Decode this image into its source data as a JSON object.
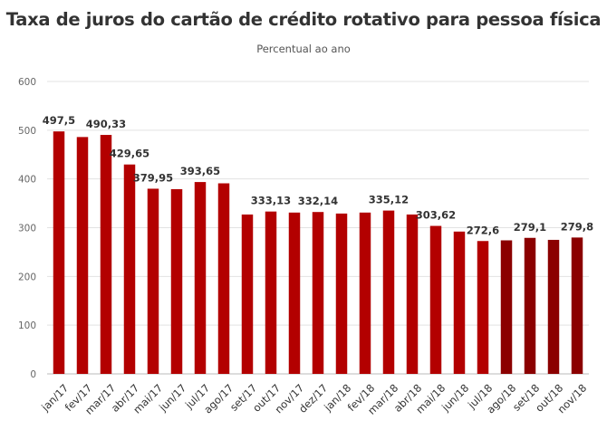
{
  "chart_data": {
    "type": "bar",
    "title": "Taxa de juros do cartão de crédito rotativo para pessoa física",
    "subtitle": "Percentual ao ano",
    "categories": [
      "jan/17",
      "fev/17",
      "mar/17",
      "abr/17",
      "mai/17",
      "jun/17",
      "jul/17",
      "ago/17",
      "set/17",
      "out/17",
      "nov/17",
      "dez/17",
      "jan/18",
      "fev/18",
      "mar/18",
      "abr/18",
      "mai/18",
      "jun/18",
      "jul/18",
      "ago/18",
      "set/18",
      "out/18",
      "nov/18"
    ],
    "values": [
      497.5,
      486,
      490.33,
      429.65,
      379.95,
      379,
      393.65,
      391,
      327,
      333.13,
      331,
      332.14,
      329,
      331,
      335.12,
      327,
      303.62,
      292,
      272.6,
      274,
      279.1,
      275,
      279.8
    ],
    "data_labels": [
      "497,5",
      "",
      "490,33",
      "429,65",
      "379,95",
      "",
      "393,65",
      "",
      "",
      "333,13",
      "",
      "332,14",
      "",
      "",
      "335,12",
      "",
      "303,62",
      "",
      "272,6",
      "",
      "279,1",
      "",
      "279,8"
    ],
    "bar_colors": [
      "#b30000",
      "#b30000",
      "#b30000",
      "#b30000",
      "#b30000",
      "#b30000",
      "#b30000",
      "#b30000",
      "#b30000",
      "#b30000",
      "#b30000",
      "#b30000",
      "#b30000",
      "#b30000",
      "#b30000",
      "#b30000",
      "#b30000",
      "#b30000",
      "#b30000",
      "#8b0000",
      "#8b0000",
      "#8b0000",
      "#8b0000"
    ],
    "ylim": [
      0,
      600
    ],
    "yticks": [
      0,
      100,
      200,
      300,
      400,
      500,
      600
    ],
    "grid": true,
    "legend": false
  }
}
